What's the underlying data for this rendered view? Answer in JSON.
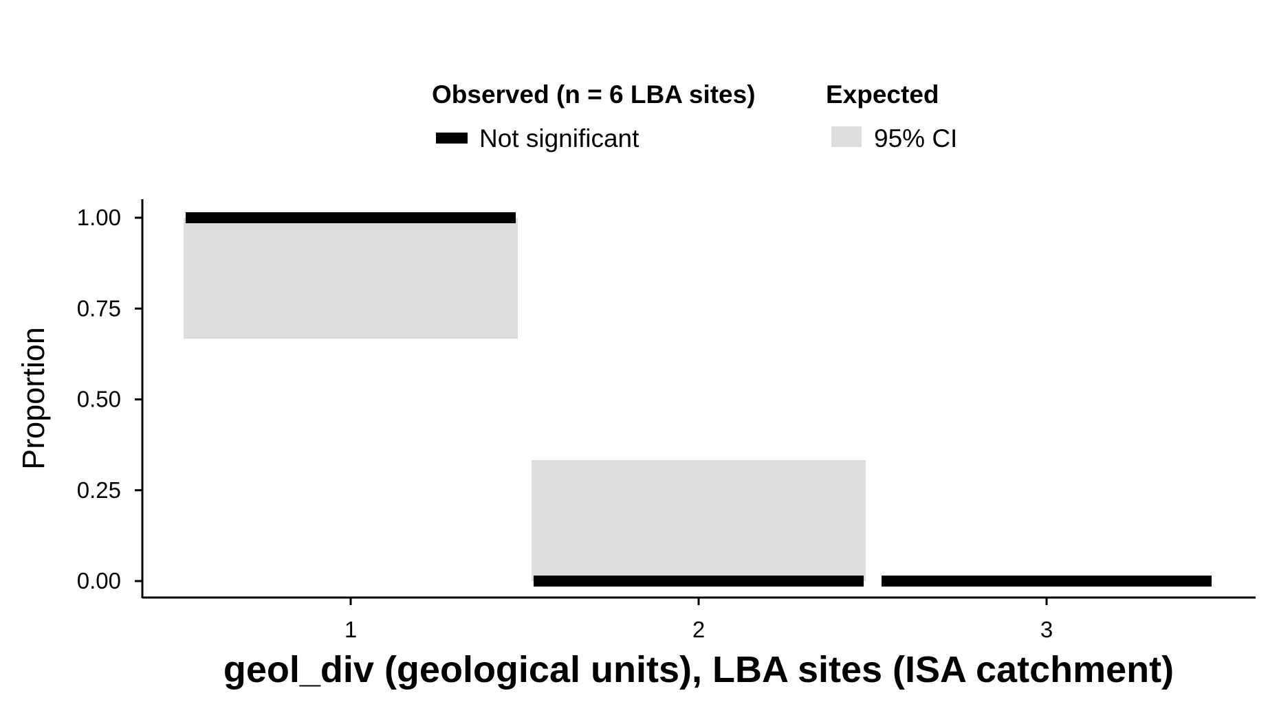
{
  "chart_data": {
    "type": "bar",
    "categories": [
      "1",
      "2",
      "3"
    ],
    "observed": [
      1.0,
      0.0,
      0.0
    ],
    "expected_ci": [
      {
        "low": 0.667,
        "high": 1.0
      },
      {
        "low": 0.0,
        "high": 0.333
      },
      null
    ],
    "ylim": [
      0,
      1
    ],
    "yticks": [
      "0.00",
      "0.25",
      "0.50",
      "0.75",
      "1.00"
    ],
    "xlabel": "geol_div (geological units), LBA sites (ISA catchment)",
    "ylabel": "Proportion",
    "legend": {
      "position": "top",
      "observed_title": "Observed (n = 6 LBA sites)",
      "observed_label": "Not significant",
      "expected_title": "Expected",
      "expected_label": "95% CI"
    },
    "colors": {
      "observed": "#000000",
      "ci": "#dddddd"
    }
  }
}
